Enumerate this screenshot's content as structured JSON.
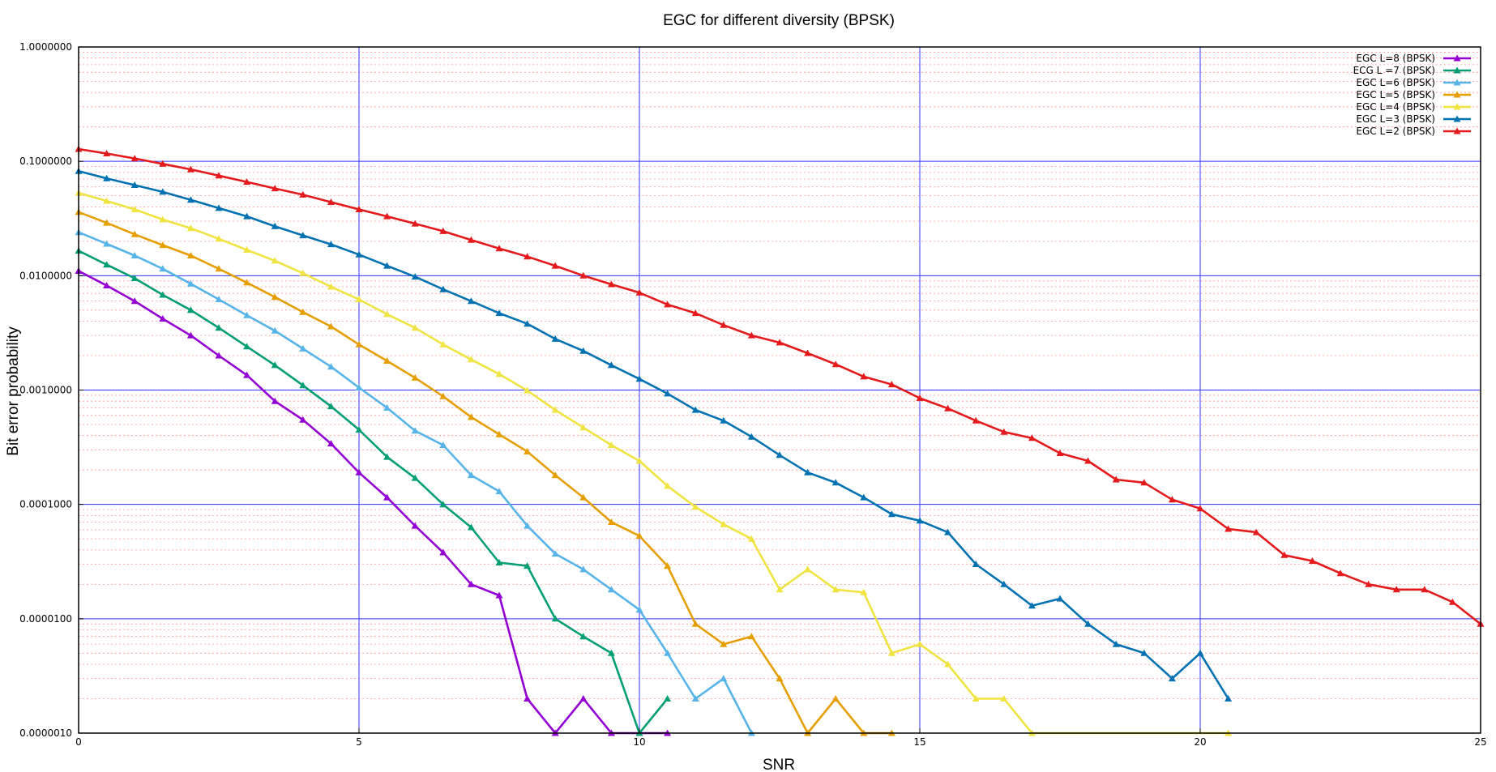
{
  "chart_data": {
    "type": "line",
    "title": "EGC for different diversity (BPSK)",
    "xlabel": "SNR",
    "ylabel": "Bit error probability",
    "xlim": [
      0,
      25
    ],
    "ylim": [
      1e-06,
      1
    ],
    "yscale": "log",
    "grid": true,
    "legend_position": "top-right",
    "x_ticks": [
      "0",
      "5",
      "10",
      "15",
      "20",
      "25"
    ],
    "y_ticks": [
      "1.0000000",
      "0.1000000",
      "0.0100000",
      "0.0010000",
      "0.0001000",
      "0.0000100",
      "0.0000010"
    ],
    "colors": {
      "major_grid": "#3333ff",
      "minor_grid": "#ff9999",
      "frame": "#000000"
    },
    "series": [
      {
        "name": "EGC L=8 (BPSK)",
        "color": "#9400d3",
        "x": [
          0,
          0.5,
          1,
          1.5,
          2,
          2.5,
          3,
          3.5,
          4,
          4.5,
          5,
          5.5,
          6,
          6.5,
          7,
          7.5,
          8,
          8.5,
          9,
          9.5,
          10.5
        ],
        "y": [
          0.011,
          0.0082,
          0.006,
          0.0042,
          0.003,
          0.002,
          0.00135,
          0.0008,
          0.00055,
          0.00034,
          0.00019,
          0.000115,
          6.5e-05,
          3.8e-05,
          2e-05,
          1.6e-05,
          2e-06,
          1e-06,
          2e-06,
          1e-06,
          1e-06
        ]
      },
      {
        "name": "ECG L =7 (BPSK)",
        "color": "#009e73",
        "x": [
          0,
          0.5,
          1,
          1.5,
          2,
          2.5,
          3,
          3.5,
          4,
          4.5,
          5,
          5.5,
          6,
          6.5,
          7,
          7.5,
          8,
          8.5,
          9,
          9.5,
          10,
          10.5
        ],
        "y": [
          0.0165,
          0.0125,
          0.0095,
          0.0068,
          0.005,
          0.0035,
          0.0024,
          0.00165,
          0.0011,
          0.00072,
          0.00045,
          0.00026,
          0.00017,
          0.0001,
          6.3e-05,
          3.1e-05,
          2.9e-05,
          1e-05,
          7e-06,
          5e-06,
          1e-06,
          2e-06
        ]
      },
      {
        "name": "EGC L=6 (BPSK)",
        "color": "#56b4e9",
        "x": [
          0,
          0.5,
          1,
          1.5,
          2,
          2.5,
          3,
          3.5,
          4,
          4.5,
          5,
          5.5,
          6,
          6.5,
          7,
          7.5,
          8,
          8.5,
          9,
          9.5,
          10,
          10.5,
          11,
          11.5,
          12
        ],
        "y": [
          0.024,
          0.019,
          0.015,
          0.0115,
          0.0085,
          0.0062,
          0.0045,
          0.0033,
          0.0023,
          0.0016,
          0.00105,
          0.0007,
          0.00044,
          0.00033,
          0.00018,
          0.00013,
          6.5e-05,
          3.7e-05,
          2.7e-05,
          1.8e-05,
          1.2e-05,
          5e-06,
          2e-06,
          3e-06,
          1e-06
        ]
      },
      {
        "name": "EGC L=5 (BPSK)",
        "color": "#e69f00",
        "x": [
          0,
          0.5,
          1,
          1.5,
          2,
          2.5,
          3,
          3.5,
          4,
          4.5,
          5,
          5.5,
          6,
          6.5,
          7,
          7.5,
          8,
          8.5,
          9,
          9.5,
          10,
          10.5,
          11,
          11.5,
          12,
          12.5,
          13,
          13.5,
          14,
          14.5
        ],
        "y": [
          0.036,
          0.029,
          0.023,
          0.0185,
          0.015,
          0.0115,
          0.0087,
          0.0065,
          0.0048,
          0.0036,
          0.0025,
          0.0018,
          0.00128,
          0.00088,
          0.00058,
          0.00041,
          0.00029,
          0.00018,
          0.000115,
          7e-05,
          5.3e-05,
          2.9e-05,
          9e-06,
          6e-06,
          7e-06,
          3e-06,
          1e-06,
          2e-06,
          1e-06,
          1e-06
        ]
      },
      {
        "name": "EGC L=4 (BPSK)",
        "color": "#f0e442",
        "x": [
          0,
          0.5,
          1,
          1.5,
          2,
          2.5,
          3,
          3.5,
          4,
          4.5,
          5,
          5.5,
          6,
          6.5,
          7,
          7.5,
          8,
          8.5,
          9,
          9.5,
          10,
          10.5,
          11,
          11.5,
          12,
          12.5,
          13,
          13.5,
          14,
          14.5,
          15,
          15.5,
          16,
          16.5,
          17,
          20.5
        ],
        "y": [
          0.053,
          0.045,
          0.038,
          0.031,
          0.026,
          0.021,
          0.0168,
          0.0135,
          0.0105,
          0.008,
          0.0062,
          0.0046,
          0.0035,
          0.0025,
          0.00185,
          0.00138,
          0.00099,
          0.00067,
          0.00047,
          0.00033,
          0.00024,
          0.000145,
          9.5e-05,
          6.7e-05,
          5e-05,
          1.8e-05,
          2.7e-05,
          1.8e-05,
          1.7e-05,
          5e-06,
          6e-06,
          4e-06,
          2e-06,
          2e-06,
          1e-06,
          1e-06
        ]
      },
      {
        "name": "EGC L=3 (BPSK)",
        "color": "#0072b2",
        "x": [
          0,
          0.5,
          1,
          1.5,
          2,
          2.5,
          3,
          3.5,
          4,
          4.5,
          5,
          5.5,
          6,
          6.5,
          7,
          7.5,
          8,
          8.5,
          9,
          9.5,
          10,
          10.5,
          11,
          11.5,
          12,
          12.5,
          13,
          13.5,
          14,
          14.5,
          15,
          15.5,
          16,
          16.5,
          17,
          17.5,
          18,
          18.5,
          19,
          19.5,
          20,
          20.5
        ],
        "y": [
          0.082,
          0.071,
          0.062,
          0.054,
          0.046,
          0.039,
          0.033,
          0.027,
          0.0225,
          0.0188,
          0.0153,
          0.0122,
          0.0098,
          0.0076,
          0.006,
          0.0047,
          0.0038,
          0.0028,
          0.0022,
          0.00165,
          0.00125,
          0.00093,
          0.00067,
          0.00054,
          0.00039,
          0.00027,
          0.00019,
          0.000155,
          0.000115,
          8.2e-05,
          7.2e-05,
          5.7e-05,
          3e-05,
          2e-05,
          1.3e-05,
          1.5e-05,
          9e-06,
          6e-06,
          5e-06,
          3e-06,
          5e-06,
          2e-06
        ]
      },
      {
        "name": "EGC L=2 (BPSK)",
        "color": "#e41a1c",
        "x": [
          0,
          0.5,
          1,
          1.5,
          2,
          2.5,
          3,
          3.5,
          4,
          4.5,
          5,
          5.5,
          6,
          6.5,
          7,
          7.5,
          8,
          8.5,
          9,
          9.5,
          10,
          10.5,
          11,
          11.5,
          12,
          12.5,
          13,
          13.5,
          14,
          14.5,
          15,
          15.5,
          16,
          16.5,
          17,
          17.5,
          18,
          18.5,
          19,
          19.5,
          20,
          20.5,
          21,
          21.5,
          22,
          22.5,
          23,
          23.5,
          24,
          24.5,
          25
        ],
        "y": [
          0.128,
          0.117,
          0.106,
          0.095,
          0.085,
          0.075,
          0.066,
          0.058,
          0.051,
          0.044,
          0.038,
          0.033,
          0.0285,
          0.0245,
          0.0205,
          0.0173,
          0.0147,
          0.0122,
          0.01,
          0.0084,
          0.0071,
          0.0056,
          0.0047,
          0.0037,
          0.003,
          0.0026,
          0.0021,
          0.00168,
          0.00131,
          0.00112,
          0.00085,
          0.00069,
          0.00054,
          0.00043,
          0.00038,
          0.00028,
          0.00024,
          0.000165,
          0.000155,
          0.00011,
          9.2e-05,
          6.1e-05,
          5.7e-05,
          3.6e-05,
          3.2e-05,
          2.5e-05,
          2e-05,
          1.8e-05,
          1.8e-05,
          1.4e-05,
          9e-06
        ]
      }
    ]
  }
}
